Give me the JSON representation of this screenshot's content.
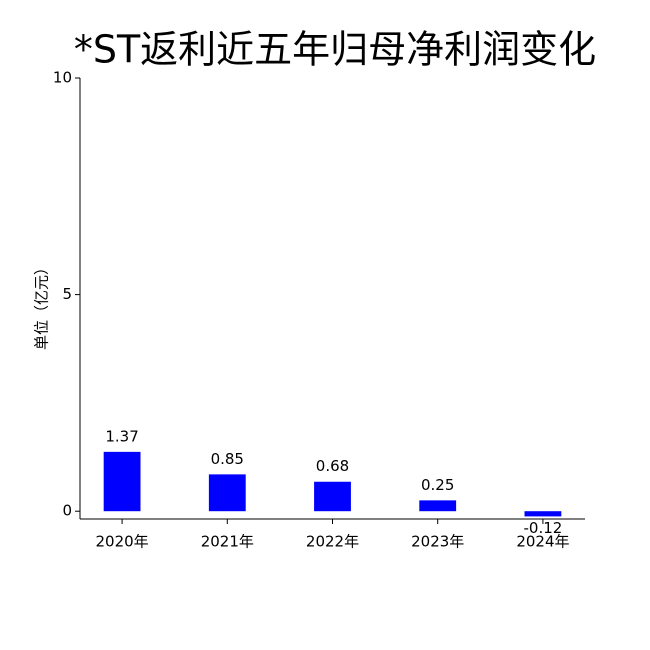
{
  "chart_data": {
    "type": "bar",
    "title": "*ST返利近五年归母净利润变化",
    "y_label": "单位（亿元）",
    "categories": [
      "2020年",
      "2021年",
      "2022年",
      "2023年",
      "2024年"
    ],
    "values": [
      1.37,
      0.85,
      0.68,
      0.25,
      -0.12
    ],
    "color": "#0000ff",
    "ylim": [
      -0.18,
      10
    ],
    "yticks": [
      0,
      5,
      10
    ],
    "grid": false
  }
}
